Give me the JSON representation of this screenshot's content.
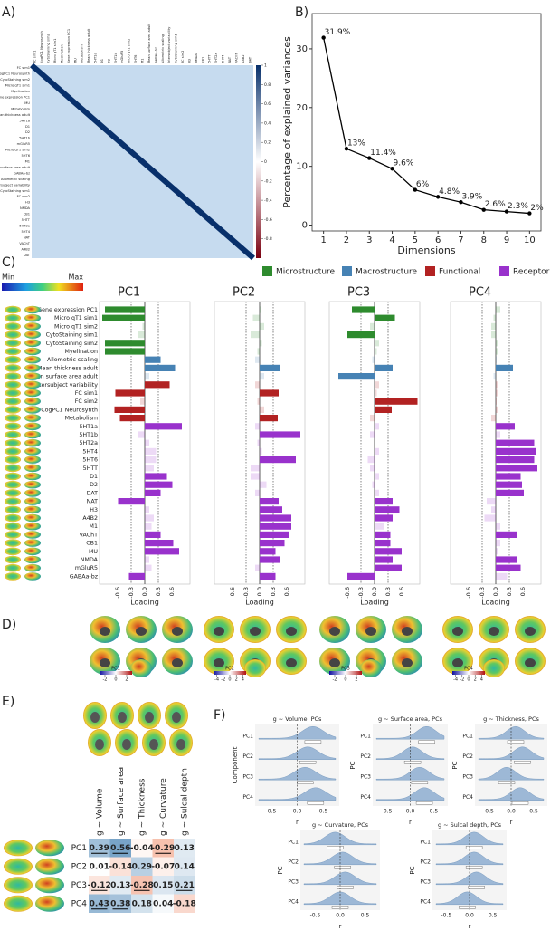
{
  "panel_labels": [
    "A)",
    "B)",
    "C)",
    "D)",
    "E)",
    "F)"
  ],
  "chart_data": [
    {
      "type": "heatmap",
      "labels": [
        "FC sim1",
        "CogPC1 Neurosynth",
        "CytoStaining sim2",
        "Micro qT1 sim1",
        "Myelination",
        "Gene expression PC1",
        "MU",
        "Metabolism",
        "Mean thickness adult",
        "5HT1a",
        "D1",
        "D2",
        "5HT1b",
        "mGluR5",
        "Micro qT1 sim2",
        "5HT6",
        "M1",
        "Mean surface area adult",
        "GABAa-bz",
        "Allometric scaling",
        "Intersubject variability",
        "CytoStaining sim1",
        "FC sim2",
        "H3",
        "NMDA",
        "CB1",
        "5HTT",
        "5HT2a",
        "5HT4",
        "NAT",
        "VAChT",
        "A4B2",
        "DAT"
      ],
      "clim": [
        -1,
        1
      ],
      "colorbar_ticks": [
        1,
        0.8,
        0.6,
        0.4,
        0.2,
        0,
        -0.2,
        -0.4,
        -0.6,
        -0.8
      ]
    },
    {
      "type": "line",
      "x": [
        1,
        2,
        3,
        4,
        5,
        6,
        7,
        8,
        9,
        10
      ],
      "values": [
        31.9,
        13,
        11.4,
        9.6,
        6,
        4.8,
        3.9,
        2.6,
        2.3,
        2
      ],
      "value_labels": [
        "31.9%",
        "13%",
        "11.4%",
        "9.6%",
        "6%",
        "4.8%",
        "3.9%",
        "2.6%",
        "2.3%",
        "2%"
      ],
      "xlim": [
        0.5,
        10.5
      ],
      "xticks": [
        1,
        2,
        3,
        4,
        5,
        6,
        7,
        8,
        9,
        10
      ],
      "ylim": [
        -1,
        36
      ],
      "yticks": [
        0,
        10,
        20,
        30
      ],
      "xlabel": "Dimensions",
      "ylabel": "Percentage of explained variances",
      "color": "#000000"
    },
    {
      "type": "bar",
      "orientation": "horizontal",
      "scale_labels": [
        "Min",
        "Max"
      ],
      "legend": [
        {
          "name": "Microstructure",
          "color": "#2e8b2e"
        },
        {
          "name": "Macrostructure",
          "color": "#4682b4"
        },
        {
          "name": "Functional",
          "color": "#b22222"
        },
        {
          "name": "Receptor",
          "color": "#9932cc"
        }
      ],
      "features": [
        "Gene expression PC1",
        "Micro qT1 sim1",
        "Micro qT1 sim2",
        "CytoStaining sim1",
        "CytoStaining sim2",
        "Myelination",
        "Allometric scaling",
        "Mean thickness adult",
        "Mean surface area adult",
        "Intersubject variability",
        "FC sim1",
        "FC sim2",
        "CogPC1 Neurosynth",
        "Metabolism",
        "5HT1a",
        "5HT1b",
        "5HT2a",
        "5HT4",
        "5HT6",
        "5HTT",
        "D1",
        "D2",
        "DAT",
        "NAT",
        "H3",
        "A4B2",
        "M1",
        "VAChT",
        "CB1",
        "MU",
        "NMDA",
        "mGluR5",
        "GABAa-bz"
      ],
      "bar_colors": [
        "#2e8b2e",
        "#2e8b2e",
        "#2e8b2e",
        "#2e8b2e",
        "#2e8b2e",
        "#2e8b2e",
        "#4682b4",
        "#4682b4",
        "#4682b4",
        "#b22222",
        "#b22222",
        "#b22222",
        "#b22222",
        "#b22222",
        "#9932cc",
        "#9932cc",
        "#9932cc",
        "#9932cc",
        "#9932cc",
        "#9932cc",
        "#9932cc",
        "#9932cc",
        "#9932cc",
        "#9932cc",
        "#9932cc",
        "#9932cc",
        "#9932cc",
        "#9932cc",
        "#9932cc",
        "#9932cc",
        "#9932cc",
        "#9932cc",
        "#9932cc"
      ],
      "panels": [
        {
          "title": "PC1",
          "values": [
            -0.88,
            -0.94,
            -0.05,
            -0.15,
            -0.88,
            -0.88,
            0.35,
            0.67,
            0.1,
            0.55,
            -0.65,
            -0.1,
            -0.67,
            -0.55,
            0.82,
            -0.15,
            0.1,
            0.25,
            0.25,
            0.2,
            0.49,
            0.61,
            0.35,
            -0.59,
            0.1,
            0.2,
            0.15,
            0.35,
            0.63,
            0.76,
            0.1,
            0.15,
            -0.35
          ]
        },
        {
          "title": "PC2",
          "values": [
            0.02,
            -0.15,
            0.1,
            -0.2,
            0.05,
            -0.05,
            -0.1,
            0.45,
            0.1,
            -0.1,
            0.42,
            -0.05,
            0.1,
            0.4,
            -0.1,
            0.9,
            -0.05,
            0.05,
            0.8,
            -0.2,
            -0.2,
            0.15,
            -0.1,
            0.42,
            0.5,
            0.7,
            0.7,
            0.65,
            0.55,
            0.35,
            0.45,
            -0.1,
            0.35
          ]
        },
        {
          "title": "PC3",
          "values": [
            -0.5,
            0.45,
            -0.1,
            -0.6,
            0.1,
            0.05,
            -0.05,
            0.4,
            -0.8,
            0.1,
            0.05,
            0.95,
            0.38,
            -0.1,
            0.1,
            -0.1,
            0.02,
            0.1,
            -0.15,
            -0.1,
            0.1,
            -0.05,
            0.1,
            0.4,
            0.55,
            0.4,
            0.2,
            0.35,
            0.35,
            0.6,
            0.4,
            0.6,
            -0.6
          ]
        },
        {
          "title": "PC4",
          "values": [
            0.1,
            -0.05,
            -0.1,
            -0.1,
            0.05,
            0.05,
            0.02,
            0.38,
            -0.05,
            0.05,
            0.05,
            0.02,
            0.05,
            -0.1,
            0.42,
            0.1,
            0.85,
            0.88,
            0.85,
            0.92,
            0.55,
            0.58,
            0.62,
            -0.2,
            -0.1,
            -0.25,
            0.1,
            0.48,
            0.1,
            0.05,
            0.48,
            0.55,
            0.25
          ]
        }
      ],
      "xlim": [
        -1,
        1
      ],
      "xticks": [
        -0.6,
        -0.3,
        {
          "value": 0,
          "label": "0.0"
        },
        0.3,
        0.6
      ],
      "xlabel": "Loading"
    },
    {
      "type": "brain_maps",
      "panels": [
        {
          "name": "PC1",
          "clim": [
            -3,
            3
          ],
          "ticks": [
            -2,
            0,
            2
          ]
        },
        {
          "name": "PC2",
          "clim": [
            -5,
            5
          ],
          "ticks": [
            -4,
            -2,
            0,
            2,
            4
          ]
        },
        {
          "name": "PC3",
          "clim": [
            -3,
            3
          ],
          "ticks": [
            -2,
            0,
            2
          ]
        },
        {
          "name": "PC4",
          "clim": [
            -5,
            5
          ],
          "ticks": [
            -4,
            -2,
            0,
            2,
            4
          ]
        }
      ]
    },
    {
      "type": "table",
      "columns": [
        "g ~ Volume",
        "g ~ Surface area",
        "g ~ Thickness",
        "g ~ Curvature",
        "g ~ Sulcal depth"
      ],
      "rows": [
        "PC1",
        "PC2",
        "PC3",
        "PC4"
      ],
      "values": [
        [
          0.39,
          0.56,
          -0.04,
          -0.29,
          0.13
        ],
        [
          0.01,
          -0.14,
          0.29,
          -0.07,
          0.14
        ],
        [
          -0.12,
          0.13,
          -0.28,
          0.15,
          0.21
        ],
        [
          0.43,
          0.38,
          0.18,
          0.04,
          -0.18
        ]
      ],
      "significant": [
        [
          true,
          true,
          false,
          true,
          false
        ],
        [
          false,
          false,
          false,
          false,
          false
        ],
        [
          true,
          false,
          true,
          false,
          true
        ],
        [
          true,
          true,
          false,
          false,
          false
        ]
      ]
    },
    {
      "type": "raincloud",
      "rows": [
        "PC1",
        "PC2",
        "PC3",
        "PC4"
      ],
      "xlim": [
        -0.8,
        0.8
      ],
      "xticks": [
        -0.5,
        {
          "value": 0,
          "label": "0.0"
        },
        0.5
      ],
      "xlabel": "r",
      "plots": [
        {
          "title": "g ~ Volume, PCs",
          "ylabel": "Component"
        },
        {
          "title": "g ~ Surface area, PCs",
          "ylabel": "PC"
        },
        {
          "title": "g ~ Thickness, PCs",
          "ylabel": "PC"
        },
        {
          "title": "g ~ Curvature, PCs",
          "ylabel": "PC"
        },
        {
          "title": "g ~ Sulcal depth, PCs",
          "ylabel": "PC"
        }
      ]
    }
  ]
}
